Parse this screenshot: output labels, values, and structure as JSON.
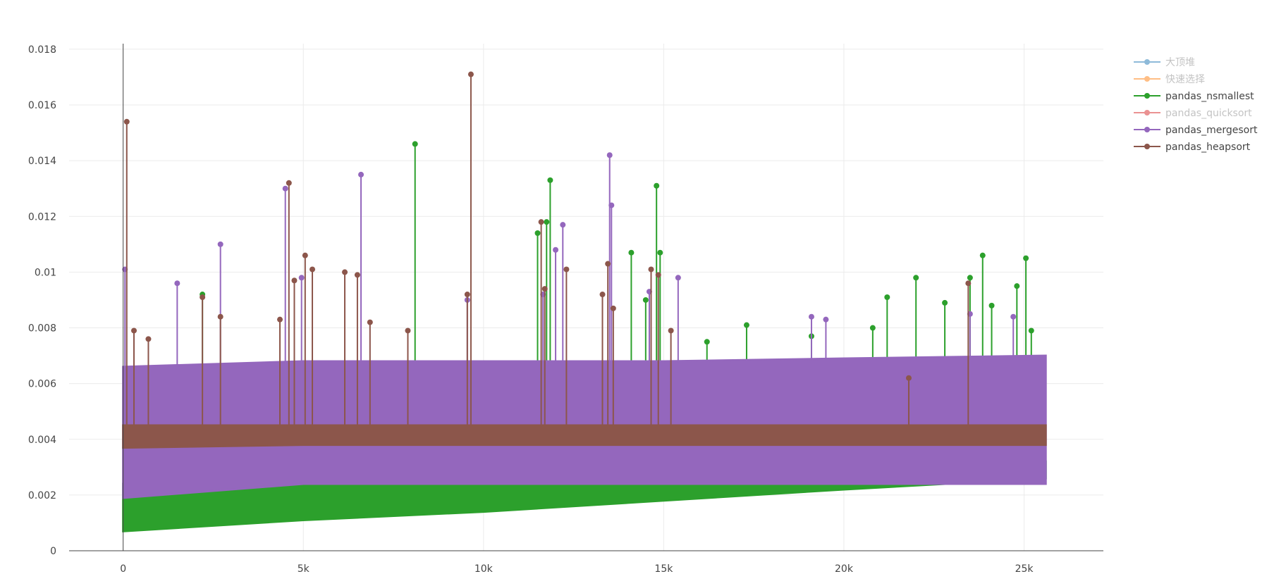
{
  "chart_data": {
    "type": "line",
    "title": "",
    "xlabel": "",
    "ylabel": "",
    "xlim": [
      -1500,
      27200
    ],
    "ylim": [
      0,
      0.0182
    ],
    "x_ticks": [
      0,
      5000,
      10000,
      15000,
      20000,
      25000
    ],
    "x_tick_labels": [
      "0",
      "5k",
      "10k",
      "15k",
      "20k",
      "25k"
    ],
    "y_ticks": [
      0,
      0.002,
      0.004,
      0.006,
      0.008,
      0.01,
      0.012,
      0.014,
      0.016,
      0.018
    ],
    "y_tick_labels": [
      "0",
      "0.002",
      "0.004",
      "0.006",
      "0.008",
      "0.01",
      "0.012",
      "0.014",
      "0.016",
      "0.018"
    ],
    "grid": true,
    "legend_position": "top-right",
    "series": [
      {
        "name": "大顶堆",
        "color": "#1f77b4",
        "visible": false,
        "x": [],
        "y": []
      },
      {
        "name": "快速选择",
        "color": "#ff7f0e",
        "visible": false,
        "x": [],
        "y": []
      },
      {
        "name": "pandas_nsmallest",
        "color": "#2ca02c",
        "visible": true,
        "band": {
          "x": [
            0,
            5000,
            10000,
            15000,
            20000,
            25600
          ],
          "low": [
            0.0007,
            0.0011,
            0.0014,
            0.0018,
            0.0022,
            0.0026
          ],
          "high": [
            0.0024,
            0.0024,
            0.0024,
            0.0024,
            0.0025,
            0.0032
          ]
        },
        "x": [
          2200,
          8100,
          11500,
          11750,
          11850,
          14100,
          14500,
          14800,
          14900,
          16200,
          17300,
          19100,
          20800,
          21200,
          22000,
          22800,
          23500,
          23850,
          24100,
          24800,
          25050,
          25200
        ],
        "y": [
          0.0092,
          0.0146,
          0.0114,
          0.0118,
          0.0133,
          0.0107,
          0.009,
          0.0131,
          0.0107,
          0.0075,
          0.0081,
          0.0077,
          0.008,
          0.0091,
          0.0098,
          0.0089,
          0.0098,
          0.0106,
          0.0088,
          0.0095,
          0.0105,
          0.0079
        ]
      },
      {
        "name": "pandas_quicksort",
        "color": "#d62728",
        "visible": false,
        "x": [],
        "y": []
      },
      {
        "name": "pandas_mergesort",
        "color": "#9467bd",
        "visible": true,
        "band": {
          "x": [
            0,
            5000,
            10000,
            15000,
            20000,
            25600
          ],
          "low": [
            0.0019,
            0.0024,
            0.0024,
            0.0024,
            0.0024,
            0.0024
          ],
          "high": [
            0.0066,
            0.0068,
            0.0068,
            0.0068,
            0.0069,
            0.007
          ]
        },
        "x": [
          50,
          1500,
          2700,
          4500,
          4950,
          6600,
          9550,
          11650,
          12000,
          12200,
          13500,
          13550,
          14600,
          15400,
          19100,
          19500,
          23500,
          24700
        ],
        "y": [
          0.0101,
          0.0096,
          0.011,
          0.013,
          0.0098,
          0.0135,
          0.009,
          0.0092,
          0.0108,
          0.0117,
          0.0142,
          0.0124,
          0.0093,
          0.0098,
          0.0084,
          0.0083,
          0.0085,
          0.0084
        ]
      },
      {
        "name": "pandas_heapsort",
        "color": "#8c564b",
        "visible": true,
        "band": {
          "x": [
            0,
            5000,
            10000,
            15000,
            20000,
            25600
          ],
          "low": [
            0.0037,
            0.0038,
            0.0038,
            0.0038,
            0.0038,
            0.0038
          ],
          "high": [
            0.0045,
            0.0045,
            0.0045,
            0.0045,
            0.0045,
            0.0045
          ]
        },
        "x": [
          100,
          300,
          700,
          2200,
          2700,
          4350,
          4600,
          4750,
          5050,
          5250,
          6150,
          6500,
          6850,
          7900,
          9550,
          9650,
          11600,
          11700,
          12300,
          13300,
          13450,
          13600,
          14650,
          14850,
          15200,
          21800,
          23450
        ],
        "y": [
          0.0154,
          0.0079,
          0.0076,
          0.0091,
          0.0084,
          0.0083,
          0.0132,
          0.0097,
          0.0106,
          0.0101,
          0.01,
          0.0099,
          0.0082,
          0.0079,
          0.0092,
          0.0171,
          0.0118,
          0.0094,
          0.0101,
          0.0092,
          0.0103,
          0.0087,
          0.0101,
          0.0099,
          0.0079,
          0.0062,
          0.0096
        ]
      }
    ]
  }
}
